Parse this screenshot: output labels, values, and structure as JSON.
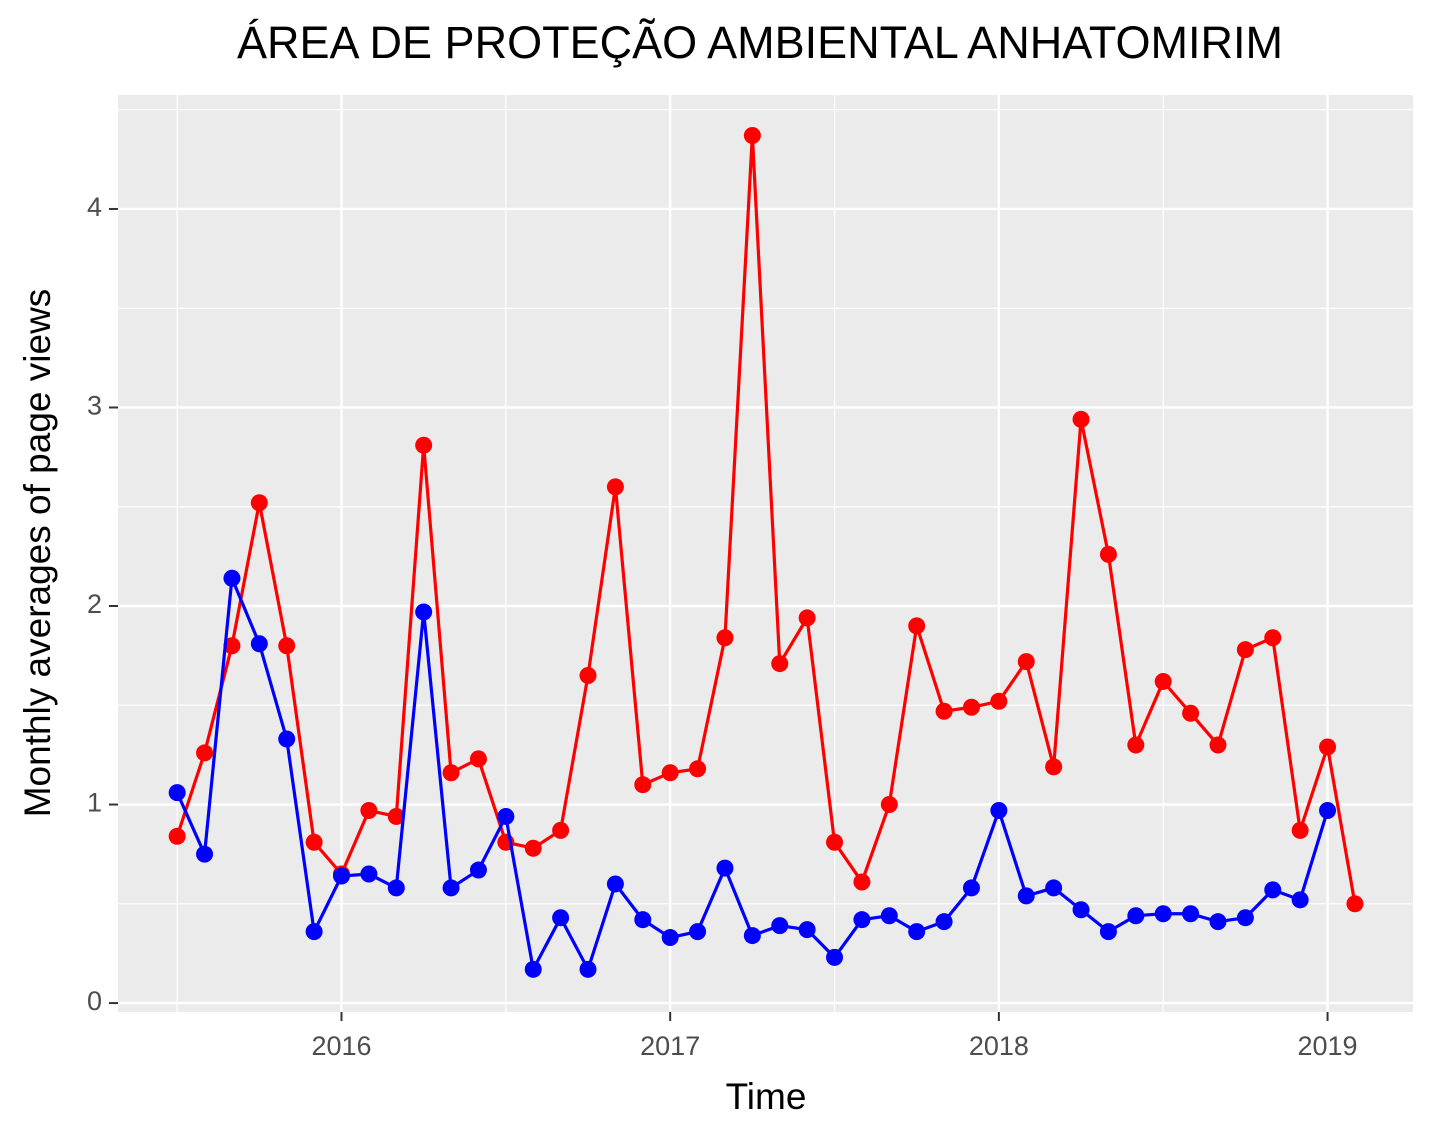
{
  "chart_data": {
    "type": "line",
    "title": "ÁREA DE PROTEÇÃO AMBIENTAL ANHATOMIRIM",
    "x_label": "Time",
    "y_label": "Monthly averages of page views",
    "x": [
      "2015-07",
      "2015-08",
      "2015-09",
      "2015-10",
      "2015-11",
      "2015-12",
      "2016-01",
      "2016-02",
      "2016-03",
      "2016-04",
      "2016-05",
      "2016-06",
      "2016-07",
      "2016-08",
      "2016-09",
      "2016-10",
      "2016-11",
      "2016-12",
      "2017-01",
      "2017-02",
      "2017-03",
      "2017-04",
      "2017-05",
      "2017-06",
      "2017-07",
      "2017-08",
      "2017-09",
      "2017-10",
      "2017-11",
      "2017-12",
      "2018-01",
      "2018-02",
      "2018-03",
      "2018-04",
      "2018-05",
      "2018-06",
      "2018-07",
      "2018-08",
      "2018-09",
      "2018-10",
      "2018-11",
      "2018-12",
      "2019-01",
      "2019-02"
    ],
    "series": [
      {
        "color": "#ff0000",
        "values": [
          0.84,
          1.26,
          1.8,
          2.52,
          1.8,
          0.81,
          0.65,
          0.97,
          0.94,
          2.81,
          1.16,
          1.23,
          0.81,
          0.78,
          0.87,
          1.65,
          2.6,
          1.1,
          1.16,
          1.18,
          1.84,
          4.37,
          1.71,
          1.94,
          0.81,
          0.61,
          1.0,
          1.9,
          1.47,
          1.49,
          1.52,
          1.72,
          1.19,
          2.94,
          2.26,
          1.3,
          1.62,
          1.46,
          1.3,
          1.78,
          1.84,
          0.87,
          1.29,
          0.5
        ]
      },
      {
        "color": "#0000ff",
        "values": [
          1.06,
          0.75,
          2.14,
          1.81,
          1.33,
          0.36,
          0.64,
          0.65,
          0.58,
          1.97,
          0.58,
          0.67,
          0.94,
          0.17,
          0.43,
          0.17,
          0.6,
          0.42,
          0.33,
          0.36,
          0.68,
          0.34,
          0.39,
          0.37,
          0.23,
          0.42,
          0.44,
          0.36,
          0.41,
          0.58,
          0.97,
          0.54,
          0.58,
          0.47,
          0.36,
          0.44,
          0.45,
          0.45,
          0.41,
          0.43,
          0.57,
          0.52,
          0.97,
          null
        ]
      }
    ],
    "xlim": [
      2015.32,
      2019.26
    ],
    "xticks": [
      2016,
      2017,
      2018,
      2019
    ],
    "ylim": [
      -0.045,
      4.574
    ],
    "yticks": [
      0,
      1,
      2,
      3,
      4
    ],
    "grid": true
  }
}
